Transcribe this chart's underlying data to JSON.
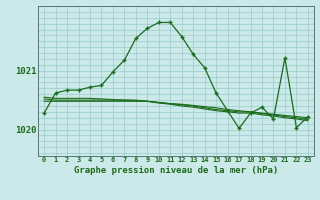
{
  "title": "Graphe pression niveau de la mer (hPa)",
  "background_color": "#cce9e9",
  "grid_color": "#99cccc",
  "line_color": "#1a6b1a",
  "x_labels": [
    "0",
    "1",
    "2",
    "3",
    "4",
    "5",
    "6",
    "7",
    "8",
    "9",
    "10",
    "11",
    "12",
    "13",
    "14",
    "15",
    "16",
    "17",
    "18",
    "19",
    "20",
    "21",
    "22",
    "23"
  ],
  "ylim": [
    1019.55,
    1022.1
  ],
  "yticks": [
    1020,
    1021
  ],
  "main_y": [
    1020.28,
    1020.62,
    1020.67,
    1020.67,
    1020.72,
    1020.75,
    1020.98,
    1021.18,
    1021.55,
    1021.72,
    1021.82,
    1021.82,
    1021.58,
    1021.28,
    1021.05,
    1020.62,
    1020.32,
    1020.02,
    1020.28,
    1020.38,
    1020.18,
    1021.22,
    1020.03,
    1020.22
  ],
  "flat1": [
    1020.48,
    1020.48,
    1020.48,
    1020.48,
    1020.48,
    1020.48,
    1020.48,
    1020.48,
    1020.48,
    1020.48,
    1020.45,
    1020.43,
    1020.4,
    1020.38,
    1020.35,
    1020.32,
    1020.3,
    1020.28,
    1020.28,
    1020.25,
    1020.23,
    1020.2,
    1020.18,
    1020.15
  ],
  "flat2": [
    1020.52,
    1020.5,
    1020.5,
    1020.5,
    1020.5,
    1020.5,
    1020.5,
    1020.5,
    1020.5,
    1020.48,
    1020.46,
    1020.44,
    1020.42,
    1020.4,
    1020.37,
    1020.34,
    1020.32,
    1020.3,
    1020.3,
    1020.27,
    1020.25,
    1020.22,
    1020.2,
    1020.17
  ],
  "flat3": [
    1020.55,
    1020.53,
    1020.53,
    1020.53,
    1020.53,
    1020.52,
    1020.51,
    1020.5,
    1020.49,
    1020.48,
    1020.46,
    1020.44,
    1020.43,
    1020.41,
    1020.39,
    1020.37,
    1020.34,
    1020.32,
    1020.3,
    1020.28,
    1020.26,
    1020.24,
    1020.22,
    1020.2
  ]
}
